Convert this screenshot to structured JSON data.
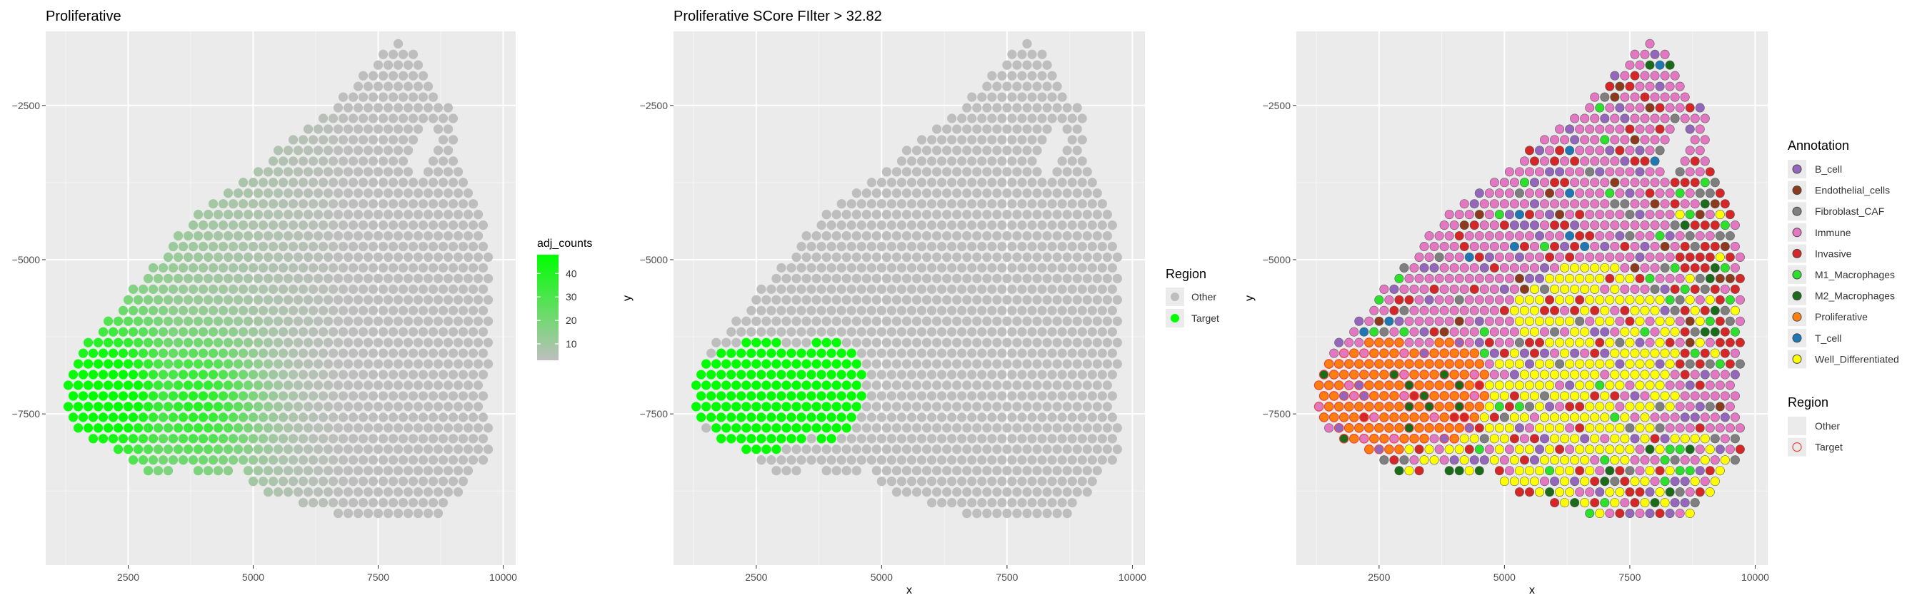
{
  "panels": [
    {
      "title": "Proliferative",
      "xlabel": "",
      "ylabel": "",
      "legend_title": "adj_counts",
      "legend_ticks": [
        10,
        20,
        30,
        40
      ]
    },
    {
      "title": "Proliferative SCore FIlter > 32.82",
      "xlabel": "x",
      "ylabel": "y",
      "legend_title": "Region",
      "legend_items": [
        "Other",
        "Target"
      ]
    },
    {
      "title": "",
      "xlabel": "x",
      "ylabel": "y",
      "legend_title": "Annotation",
      "legend_items": [
        "B_cell",
        "Endothelial_cells",
        "Fibroblast_CAF",
        "Immune",
        "Invasive",
        "M1_Macrophages",
        "M2_Macrophages",
        "Proliferative",
        "T_cell",
        "Well_Differentiated"
      ],
      "legend2_title": "Region",
      "legend2_items": [
        "Other",
        "Target"
      ]
    }
  ],
  "chart_data": [
    {
      "type": "scatter",
      "title": "Proliferative",
      "xlabel": "",
      "ylabel": "",
      "x_ticks": [
        2500,
        5000,
        7500,
        10000
      ],
      "y_ticks": [
        -2500,
        -5000,
        -7500
      ],
      "xlim": [
        850,
        10250
      ],
      "ylim": [
        -9950,
        -1300
      ],
      "color_variable": "adj_counts",
      "color_scale": {
        "low": "#BEBEBE",
        "high": "#00FF00",
        "range": [
          3,
          48
        ]
      },
      "legend_ticks": [
        10,
        20,
        30,
        40
      ],
      "grid": true
    },
    {
      "type": "scatter",
      "title": "Proliferative SCore FIlter > 32.82",
      "xlabel": "x",
      "ylabel": "y",
      "x_ticks": [
        2500,
        5000,
        7500,
        10000
      ],
      "y_ticks": [
        -2500,
        -5000,
        -7500
      ],
      "xlim": [
        850,
        10250
      ],
      "ylim": [
        -9950,
        -1300
      ],
      "threshold": 32.82,
      "categories": [
        "Other",
        "Target"
      ],
      "category_colors": {
        "Other": "#BEBEBE",
        "Target": "#00FF00"
      },
      "grid": true
    },
    {
      "type": "scatter",
      "title": "",
      "xlabel": "x",
      "ylabel": "y",
      "x_ticks": [
        2500,
        5000,
        7500,
        10000
      ],
      "y_ticks": [
        -2500,
        -5000,
        -7500
      ],
      "xlim": [
        850,
        10250
      ],
      "ylim": [
        -9950,
        -1300
      ],
      "categories": [
        "B_cell",
        "Endothelial_cells",
        "Fibroblast_CAF",
        "Immune",
        "Invasive",
        "M1_Macrophages",
        "M2_Macrophages",
        "Proliferative",
        "T_cell",
        "Well_Differentiated"
      ],
      "category_colors": {
        "B_cell": "#9467BD",
        "Endothelial_cells": "#8C3B1E",
        "Fibroblast_CAF": "#7F7F7F",
        "Immune": "#E377C2",
        "Invasive": "#D62728",
        "M1_Macrophages": "#2CE02C",
        "M2_Macrophages": "#1A6B1A",
        "Proliferative": "#FF7F0E",
        "T_cell": "#1F77B4",
        "Well_Differentiated": "#FFFF00"
      },
      "region_categories": [
        "Other",
        "Target"
      ],
      "region_outline": {
        "Other": "#EBEBEB",
        "Target": "#E8453C"
      },
      "grid": true
    }
  ]
}
